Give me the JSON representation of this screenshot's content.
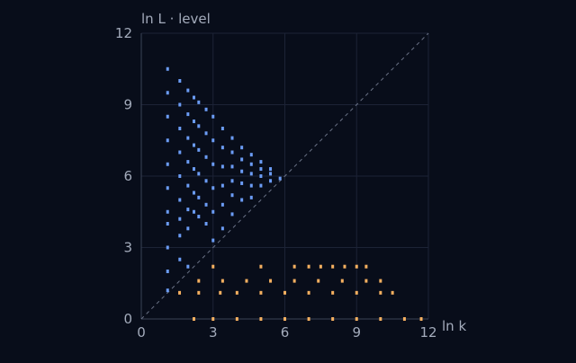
{
  "chart_data": {
    "type": "scatter",
    "x_label": "ln k",
    "y_label": "ln L · level",
    "xlim": [
      0,
      12
    ],
    "ylim": [
      0,
      12
    ],
    "xticks": [
      0,
      3,
      6,
      9,
      12
    ],
    "yticks": [
      0,
      3,
      6,
      9,
      12
    ],
    "grid": true,
    "reference_line": "y=x",
    "series": [
      {
        "name": null,
        "color": "#6b9cf5",
        "x": [
          1.1,
          1.1,
          1.1,
          1.1,
          1.1,
          1.1,
          1.1,
          1.1,
          1.1,
          1.1,
          1.1,
          1.61,
          1.61,
          1.61,
          1.61,
          1.61,
          1.61,
          1.61,
          1.61,
          1.61,
          1.95,
          1.95,
          1.95,
          1.95,
          1.95,
          1.95,
          1.95,
          1.95,
          2.2,
          2.2,
          2.2,
          2.2,
          2.2,
          2.2,
          2.4,
          2.4,
          2.4,
          2.4,
          2.4,
          2.4,
          2.71,
          2.71,
          2.71,
          2.71,
          2.71,
          2.71,
          3.0,
          3.0,
          3.0,
          3.0,
          3.0,
          3.0,
          3.4,
          3.4,
          3.4,
          3.4,
          3.4,
          3.4,
          3.8,
          3.8,
          3.8,
          3.8,
          3.8,
          3.8,
          4.2,
          4.2,
          4.2,
          4.2,
          4.2,
          4.6,
          4.6,
          4.6,
          4.6,
          4.6,
          5.0,
          5.0,
          5.0,
          5.0,
          5.4,
          5.4,
          5.4,
          5.8
        ],
        "values": [
          10.5,
          9.5,
          8.5,
          7.5,
          6.5,
          5.5,
          4.5,
          4,
          3,
          2,
          1.2,
          10,
          9,
          8,
          7,
          6,
          5,
          4.2,
          3.5,
          2.5,
          9.6,
          8.6,
          7.6,
          6.6,
          5.6,
          4.6,
          3.8,
          2.2,
          9.3,
          8.3,
          7.3,
          6.3,
          5.3,
          4.5,
          9.1,
          8.1,
          7.1,
          6.1,
          5.1,
          4.3,
          8.8,
          7.8,
          6.8,
          5.8,
          4.8,
          4.0,
          8.5,
          7.5,
          6.5,
          5.5,
          4.5,
          3.3,
          8.0,
          7.2,
          6.4,
          5.6,
          4.8,
          3.8,
          7.6,
          7.0,
          6.4,
          5.8,
          5.2,
          4.4,
          7.2,
          6.7,
          6.2,
          5.7,
          5.0,
          6.9,
          6.5,
          6.1,
          5.6,
          5.1,
          6.6,
          6.3,
          6.0,
          5.6,
          6.3,
          6.1,
          5.8,
          5.9
        ]
      },
      {
        "name": null,
        "color": "#f5b060",
        "x": [
          2.2,
          3.0,
          4.0,
          5.0,
          6.0,
          7.0,
          8.0,
          9.0,
          10.0,
          11.0,
          11.7,
          1.6,
          2.4,
          3.3,
          4.0,
          5.0,
          6.0,
          7.0,
          8.0,
          9.0,
          10.0,
          10.5,
          2.4,
          3.4,
          4.4,
          5.4,
          6.4,
          7.4,
          8.4,
          9.4,
          10.0,
          3.0,
          5.0,
          6.4,
          7.0,
          7.5,
          8.0,
          8.5,
          9.0,
          9.4
        ],
        "values": [
          0,
          0,
          0,
          0,
          0,
          0,
          0,
          0,
          0,
          0,
          0,
          1.1,
          1.1,
          1.1,
          1.1,
          1.1,
          1.1,
          1.1,
          1.1,
          1.1,
          1.1,
          1.1,
          1.6,
          1.6,
          1.6,
          1.6,
          1.6,
          1.6,
          1.6,
          1.6,
          1.6,
          2.2,
          2.2,
          2.2,
          2.2,
          2.2,
          2.2,
          2.2,
          2.2,
          2.2
        ]
      }
    ]
  }
}
